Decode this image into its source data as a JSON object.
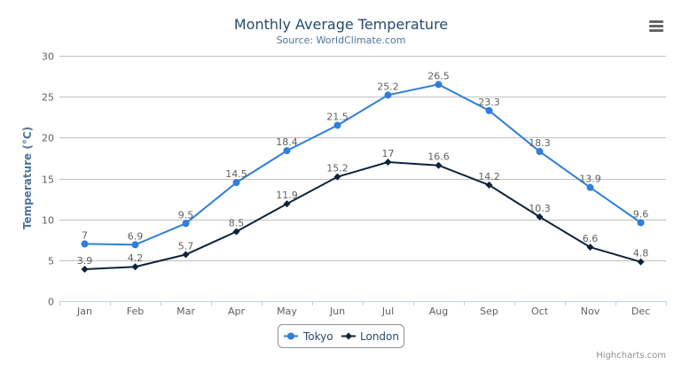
{
  "chart_data": {
    "type": "line",
    "title": "Monthly Average Temperature",
    "subtitle": "Source: WorldClimate.com",
    "xlabel": "",
    "ylabel": "Temperature (°C)",
    "ylim": [
      0,
      30
    ],
    "yticks": [
      0,
      5,
      10,
      15,
      20,
      25,
      30
    ],
    "grid": true,
    "legend": "bottom-center",
    "categories": [
      "Jan",
      "Feb",
      "Mar",
      "Apr",
      "May",
      "Jun",
      "Jul",
      "Aug",
      "Sep",
      "Oct",
      "Nov",
      "Dec"
    ],
    "series": [
      {
        "name": "Tokyo",
        "color": "#2f7ed8",
        "marker": "circle",
        "values": [
          7.0,
          6.9,
          9.5,
          14.5,
          18.4,
          21.5,
          25.2,
          26.5,
          23.3,
          18.3,
          13.9,
          9.6
        ]
      },
      {
        "name": "London",
        "color": "#0d233a",
        "marker": "diamond",
        "values": [
          3.9,
          4.2,
          5.7,
          8.5,
          11.9,
          15.2,
          17.0,
          16.6,
          14.2,
          10.3,
          6.6,
          4.8
        ]
      }
    ],
    "credits": "Highcharts.com"
  },
  "menu_icon": "hamburger-menu-icon"
}
